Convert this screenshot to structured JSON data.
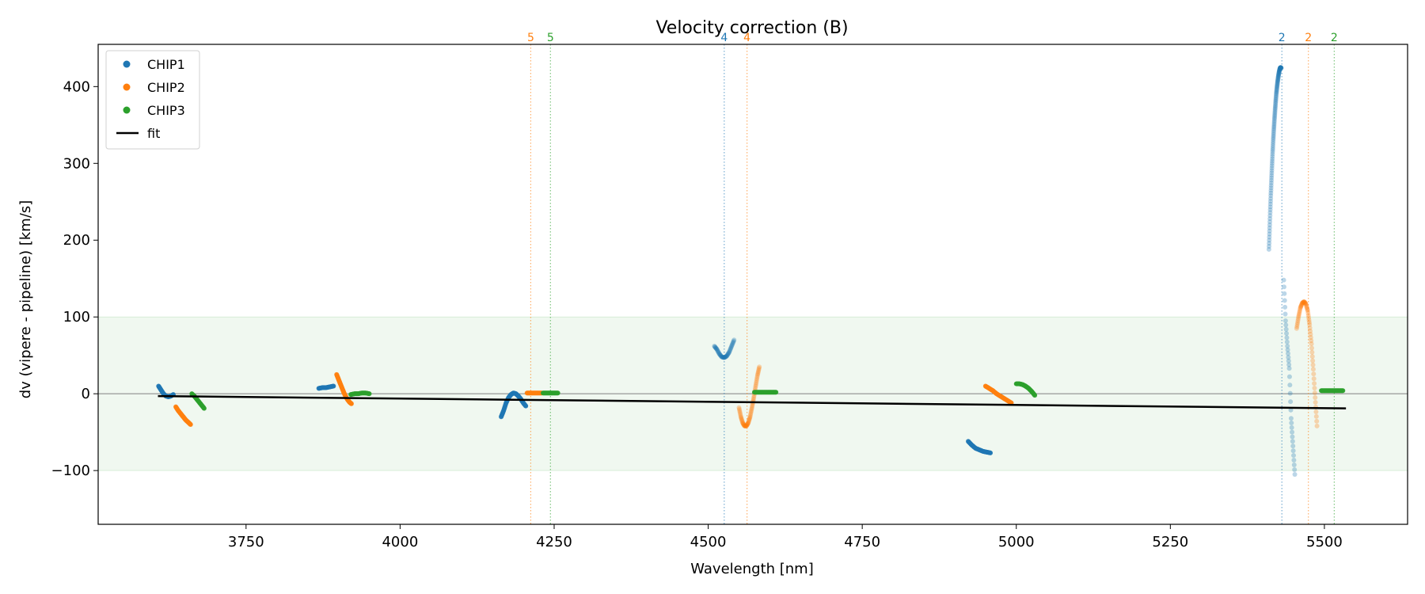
{
  "chart_data": {
    "type": "scatter",
    "title": "Velocity correction (B)",
    "xlabel": "Wavelength [nm]",
    "ylabel": "dv (vipere - pipeline) [km/s]",
    "xlim": [
      3510,
      5635
    ],
    "ylim": [
      -170,
      455
    ],
    "xticks": [
      3750,
      4000,
      4250,
      4500,
      4750,
      5000,
      5250,
      5500
    ],
    "xtick_labels": [
      "3750",
      "4000",
      "4250",
      "4500",
      "4750",
      "5000",
      "5250",
      "5500"
    ],
    "yticks": [
      -100,
      0,
      100,
      200,
      300,
      400
    ],
    "ytick_labels": [
      "−100",
      "0",
      "100",
      "200",
      "300",
      "400"
    ],
    "band": {
      "y0": -100,
      "y1": 100,
      "color": "#2ca02c"
    },
    "zero_line": 0,
    "legend": {
      "position": "upper-left",
      "entries": [
        {
          "label": "CHIP1",
          "kind": "marker",
          "color": "#1f77b4"
        },
        {
          "label": "CHIP2",
          "kind": "marker",
          "color": "#ff7f0e"
        },
        {
          "label": "CHIP3",
          "kind": "marker",
          "color": "#2ca02c"
        },
        {
          "label": "fit",
          "kind": "line",
          "color": "#000000"
        }
      ]
    },
    "order_markers": [
      {
        "x": 4212,
        "label": "5",
        "color": "#ff7f0e"
      },
      {
        "x": 4244,
        "label": "5",
        "color": "#2ca02c"
      },
      {
        "x": 4526,
        "label": "4",
        "color": "#1f77b4"
      },
      {
        "x": 4563,
        "label": "4",
        "color": "#ff7f0e"
      },
      {
        "x": 5431,
        "label": "2",
        "color": "#1f77b4"
      },
      {
        "x": 5474,
        "label": "2",
        "color": "#ff7f0e"
      },
      {
        "x": 5516,
        "label": "2",
        "color": "#2ca02c"
      }
    ],
    "fit": {
      "x": [
        3607,
        5535
      ],
      "y": [
        -3,
        -19
      ],
      "color": "#000000"
    },
    "series": [
      {
        "name": "CHIP1",
        "color": "#1f77b4",
        "alpha": 0.9,
        "segments": [
          {
            "x": [
              3608,
              3612,
              3616,
              3620,
              3624,
              3628,
              3632
            ],
            "y": [
              10,
              5,
              0,
              -3,
              -4,
              -3,
              -1
            ]
          },
          {
            "x": [
              3868,
              3874,
              3880,
              3886,
              3892
            ],
            "y": [
              7,
              8,
              8,
              9,
              10
            ]
          },
          {
            "x": [
              4164,
              4168,
              4172,
              4176,
              4180,
              4184,
              4188,
              4192,
              4196,
              4200,
              4204
            ],
            "y": [
              -30,
              -22,
              -12,
              -5,
              -1,
              1,
              0,
              -3,
              -7,
              -12,
              -16
            ]
          },
          {
            "x": [
              4922,
              4928,
              4934,
              4940,
              4946,
              4952,
              4958
            ],
            "y": [
              -62,
              -67,
              -71,
              -73,
              -75,
              -76,
              -77
            ]
          }
        ]
      },
      {
        "name": "CHIP1-faint",
        "color": "#1f77b4",
        "alpha": 0.3,
        "segments": [
          {
            "x": [
              4510,
              4514,
              4518,
              4522,
              4526,
              4530,
              4534,
              4538,
              4542
            ],
            "y": [
              62,
              58,
              52,
              48,
              47,
              49,
              54,
              62,
              70
            ]
          },
          {
            "x": [
              5410,
              5411,
              5412,
              5413,
              5414,
              5415,
              5416,
              5417,
              5418,
              5419,
              5420,
              5421,
              5422,
              5423,
              5424,
              5425,
              5426,
              5427,
              5428,
              5429,
              5430
            ],
            "y": [
              188,
              212,
              236,
              258,
              278,
              297,
              315,
              331,
              345,
              358,
              370,
              381,
              391,
              399,
              406,
              412,
              417,
              421,
              424,
              425,
              424
            ]
          },
          {
            "x": [
              5434,
              5437,
              5440,
              5443,
              5446,
              5449,
              5452
            ],
            "y": [
              148,
              95,
              62,
              33,
              -32,
              -68,
              -105
            ]
          }
        ]
      },
      {
        "name": "CHIP2",
        "color": "#ff7f0e",
        "alpha": 0.9,
        "segments": [
          {
            "x": [
              3636,
              3640,
              3644,
              3648,
              3652,
              3656,
              3660
            ],
            "y": [
              -17,
              -22,
              -26,
              -30,
              -34,
              -37,
              -40
            ]
          },
          {
            "x": [
              3897,
              3900,
              3903,
              3906,
              3909,
              3912,
              3915,
              3918,
              3921
            ],
            "y": [
              25,
              19,
              13,
              7,
              1,
              -4,
              -8,
              -11,
              -13
            ]
          },
          {
            "x": [
              4206,
              4212,
              4218,
              4224,
              4230
            ],
            "y": [
              1,
              1,
              1,
              1,
              1
            ]
          },
          {
            "x": [
              4950,
              4956,
              4962,
              4968,
              4974,
              4980,
              4986,
              4992
            ],
            "y": [
              10,
              7,
              4,
              0,
              -3,
              -6,
              -9,
              -12
            ]
          }
        ]
      },
      {
        "name": "CHIP2-faint",
        "color": "#ff7f0e",
        "alpha": 0.3,
        "segments": [
          {
            "x": [
              4550,
              4553,
              4556,
              4559,
              4562,
              4565,
              4568,
              4571,
              4574,
              4577,
              4580,
              4583
            ],
            "y": [
              -18,
              -30,
              -38,
              -42,
              -42,
              -38,
              -30,
              -18,
              -5,
              10,
              24,
              35
            ]
          },
          {
            "x": [
              5455,
              5458,
              5461,
              5464,
              5467,
              5470,
              5473,
              5476,
              5479,
              5482,
              5485,
              5488
            ],
            "y": [
              85,
              100,
              112,
              118,
              120,
              117,
              108,
              90,
              65,
              32,
              -5,
              -42
            ]
          }
        ]
      },
      {
        "name": "CHIP3",
        "color": "#2ca02c",
        "alpha": 0.9,
        "segments": [
          {
            "x": [
              3662,
              3666,
              3670,
              3674,
              3678,
              3682
            ],
            "y": [
              0,
              -3,
              -7,
              -11,
              -15,
              -19
            ]
          },
          {
            "x": [
              3920,
              3926,
              3932,
              3938,
              3944,
              3950
            ],
            "y": [
              -1,
              0,
              0,
              1,
              1,
              0
            ]
          },
          {
            "x": [
              4232,
              4238,
              4244,
              4250,
              4256
            ],
            "y": [
              1,
              1,
              1,
              1,
              1
            ]
          },
          {
            "x": [
              4575,
              4582,
              4589,
              4596,
              4603,
              4610
            ],
            "y": [
              2,
              2,
              2,
              2,
              2,
              2
            ]
          },
          {
            "x": [
              5000,
              5005,
              5010,
              5015,
              5020,
              5025,
              5030
            ],
            "y": [
              13,
              13,
              12,
              10,
              7,
              3,
              -2
            ]
          },
          {
            "x": [
              5495,
              5502,
              5509,
              5516,
              5523,
              5530
            ],
            "y": [
              4,
              4,
              4,
              4,
              4,
              4
            ]
          }
        ]
      },
      {
        "name": "CHIP3-faint",
        "color": "#2ca02c",
        "alpha": 0.3,
        "segments": []
      }
    ]
  }
}
